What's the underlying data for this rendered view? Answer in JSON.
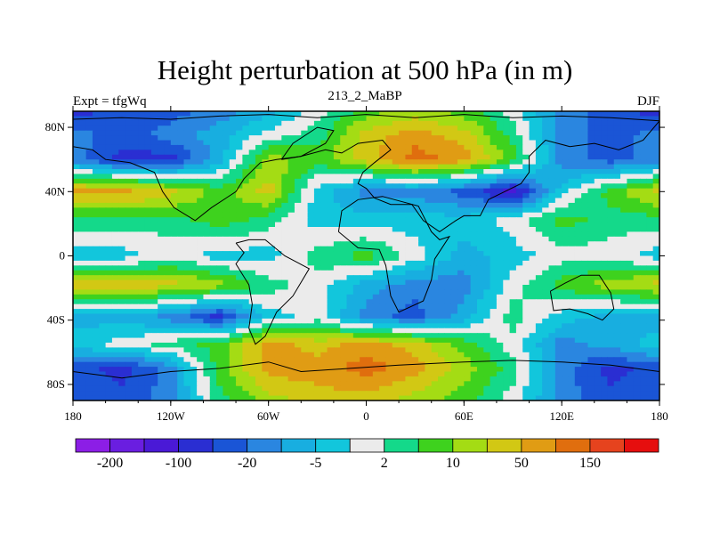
{
  "chart_data": {
    "type": "heatmap",
    "title": "Height perturbation at 500 hPa (in m)",
    "subtitle_left": "Expt = tfgWq",
    "subtitle_center": "213_2_MaBP",
    "subtitle_right": "DJF",
    "x_ticks": [
      {
        "value": -180,
        "label": "180"
      },
      {
        "value": -120,
        "label": "120W"
      },
      {
        "value": -60,
        "label": "60W"
      },
      {
        "value": 0,
        "label": "0"
      },
      {
        "value": 60,
        "label": "60E"
      },
      {
        "value": 120,
        "label": "120E"
      },
      {
        "value": 180,
        "label": "180"
      }
    ],
    "y_ticks": [
      {
        "value": 80,
        "label": "80N"
      },
      {
        "value": 40,
        "label": "40N"
      },
      {
        "value": 0,
        "label": "0"
      },
      {
        "value": -40,
        "label": "40S"
      },
      {
        "value": -80,
        "label": "80S"
      }
    ],
    "xlim": [
      -180,
      180
    ],
    "ylim": [
      -90,
      90
    ],
    "colorbar": {
      "colors": [
        "#8c1ee6",
        "#6a1ee0",
        "#4a19d6",
        "#2a2ed2",
        "#1a55d6",
        "#2a86e0",
        "#18aee0",
        "#12c6dc",
        "#ebebeb",
        "#14d98a",
        "#3ed21e",
        "#a4dc14",
        "#d2c814",
        "#e09c14",
        "#e06e0e",
        "#e6431e",
        "#e60e0e"
      ],
      "labels": [
        {
          "after_box": 1,
          "text": "-200"
        },
        {
          "after_box": 3,
          "text": "-100"
        },
        {
          "after_box": 5,
          "text": "-20"
        },
        {
          "after_box": 7,
          "text": "-5"
        },
        {
          "after_box": 9,
          "text": "2"
        },
        {
          "after_box": 11,
          "text": "10"
        },
        {
          "after_box": 13,
          "text": "50"
        },
        {
          "after_box": 15,
          "text": "150"
        }
      ]
    },
    "field": {
      "lon_nodes": [
        -180,
        -150,
        -120,
        -90,
        -60,
        -30,
        0,
        30,
        60,
        90,
        120,
        150,
        180
      ],
      "lat_rows": [
        {
          "lat": 90,
          "v": [
            3,
            4,
            4,
            5,
            6,
            8,
            10,
            11,
            10,
            8,
            5,
            4,
            3
          ]
        },
        {
          "lat": 75,
          "v": [
            5,
            4,
            5,
            6,
            8,
            9,
            12,
            13,
            12,
            9,
            5,
            4,
            5
          ]
        },
        {
          "lat": 60,
          "v": [
            5,
            3,
            3,
            6,
            11,
            10,
            12,
            14,
            13,
            10,
            5,
            4,
            5
          ]
        },
        {
          "lat": 40,
          "v": [
            13,
            13,
            12,
            10,
            12,
            7,
            5,
            5,
            4,
            2,
            7,
            10,
            12
          ]
        },
        {
          "lat": 22,
          "v": [
            9,
            9,
            9,
            10,
            9,
            7,
            7,
            7,
            7,
            8,
            10,
            9,
            9
          ]
        },
        {
          "lat": 0,
          "v": [
            7,
            7,
            8,
            7,
            7,
            9,
            10,
            8,
            6,
            7,
            8,
            8,
            7
          ]
        },
        {
          "lat": -18,
          "v": [
            12,
            12,
            12,
            11,
            9,
            8,
            6,
            5,
            5,
            8,
            10,
            11,
            12
          ]
        },
        {
          "lat": -38,
          "v": [
            6,
            6,
            5,
            3,
            7,
            8,
            5,
            4,
            6,
            9,
            7,
            6,
            6
          ]
        },
        {
          "lat": -55,
          "v": [
            7,
            8,
            9,
            10,
            13,
            12,
            13,
            12,
            10,
            8,
            5,
            6,
            7
          ]
        },
        {
          "lat": -70,
          "v": [
            4,
            3,
            5,
            10,
            13,
            13,
            14,
            13,
            11,
            9,
            5,
            3,
            4
          ]
        },
        {
          "lat": -90,
          "v": [
            4,
            4,
            5,
            9,
            11,
            12,
            12,
            11,
            10,
            8,
            5,
            4,
            4
          ]
        }
      ]
    },
    "continent_outlines": [
      [
        [
          -180,
          85
        ],
        [
          -150,
          86
        ],
        [
          -120,
          85
        ],
        [
          -90,
          87
        ],
        [
          -60,
          88
        ],
        [
          -30,
          86
        ],
        [
          0,
          88
        ],
        [
          30,
          86
        ],
        [
          60,
          88
        ],
        [
          90,
          86
        ],
        [
          120,
          87
        ],
        [
          150,
          86
        ],
        [
          180,
          84
        ],
        [
          170,
          72
        ],
        [
          155,
          66
        ],
        [
          140,
          70
        ],
        [
          125,
          68
        ],
        [
          110,
          72
        ],
        [
          100,
          62
        ],
        [
          100,
          52
        ],
        [
          95,
          45
        ],
        [
          85,
          40
        ],
        [
          75,
          35
        ],
        [
          70,
          25
        ],
        [
          60,
          25
        ],
        [
          55,
          22
        ],
        [
          45,
          15
        ],
        [
          35,
          22
        ],
        [
          28,
          32
        ],
        [
          15,
          32
        ],
        [
          5,
          36
        ],
        [
          0,
          42
        ],
        [
          -5,
          45
        ],
        [
          -2,
          52
        ],
        [
          5,
          58
        ],
        [
          15,
          66
        ],
        [
          10,
          72
        ],
        [
          -5,
          70
        ],
        [
          -15,
          64
        ],
        [
          -25,
          66
        ],
        [
          -40,
          62
        ],
        [
          -55,
          60
        ],
        [
          -65,
          58
        ],
        [
          -75,
          48
        ],
        [
          -80,
          40
        ],
        [
          -95,
          30
        ],
        [
          -105,
          22
        ],
        [
          -118,
          30
        ],
        [
          -125,
          40
        ],
        [
          -130,
          52
        ],
        [
          -145,
          58
        ],
        [
          -160,
          60
        ],
        [
          -168,
          66
        ],
        [
          -180,
          68
        ]
      ],
      [
        [
          -80,
          8
        ],
        [
          -75,
          2
        ],
        [
          -80,
          -5
        ],
        [
          -72,
          -18
        ],
        [
          -70,
          -30
        ],
        [
          -72,
          -45
        ],
        [
          -68,
          -55
        ],
        [
          -62,
          -50
        ],
        [
          -55,
          -35
        ],
        [
          -45,
          -25
        ],
        [
          -35,
          -8
        ],
        [
          -50,
          0
        ],
        [
          -62,
          10
        ],
        [
          -72,
          10
        ],
        [
          -80,
          8
        ]
      ],
      [
        [
          -17,
          15
        ],
        [
          -15,
          28
        ],
        [
          -5,
          35
        ],
        [
          10,
          37
        ],
        [
          32,
          31
        ],
        [
          40,
          15
        ],
        [
          45,
          10
        ],
        [
          51,
          12
        ],
        [
          42,
          -2
        ],
        [
          40,
          -15
        ],
        [
          35,
          -28
        ],
        [
          20,
          -35
        ],
        [
          15,
          -25
        ],
        [
          12,
          -6
        ],
        [
          8,
          4
        ],
        [
          -5,
          5
        ],
        [
          -17,
          15
        ]
      ],
      [
        [
          113,
          -22
        ],
        [
          122,
          -17
        ],
        [
          132,
          -12
        ],
        [
          143,
          -12
        ],
        [
          150,
          -23
        ],
        [
          152,
          -33
        ],
        [
          145,
          -40
        ],
        [
          136,
          -36
        ],
        [
          125,
          -33
        ],
        [
          115,
          -34
        ],
        [
          113,
          -22
        ]
      ],
      [
        [
          -180,
          -72
        ],
        [
          -150,
          -76
        ],
        [
          -120,
          -72
        ],
        [
          -90,
          -70
        ],
        [
          -60,
          -66
        ],
        [
          -40,
          -72
        ],
        [
          -10,
          -70
        ],
        [
          20,
          -68
        ],
        [
          60,
          -66
        ],
        [
          90,
          -65
        ],
        [
          120,
          -66
        ],
        [
          150,
          -68
        ],
        [
          180,
          -72
        ]
      ],
      [
        [
          -52,
          60
        ],
        [
          -45,
          70
        ],
        [
          -30,
          80
        ],
        [
          -20,
          78
        ],
        [
          -25,
          70
        ],
        [
          -40,
          62
        ],
        [
          -52,
          60
        ]
      ]
    ]
  }
}
